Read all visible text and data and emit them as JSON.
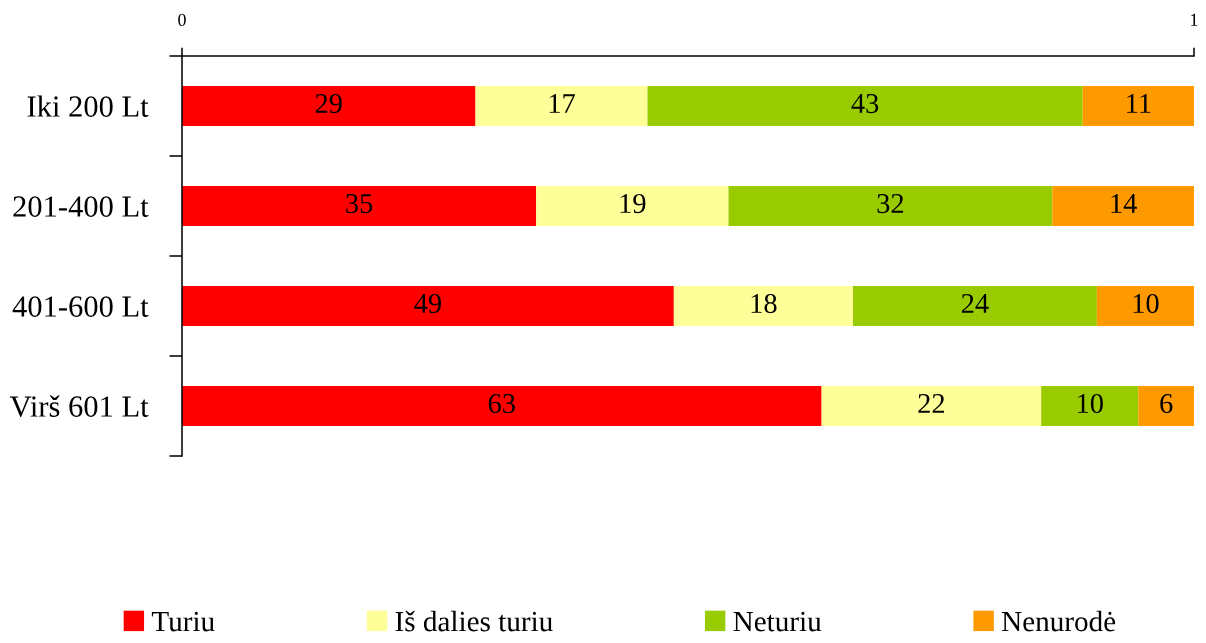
{
  "chart_data": {
    "type": "bar",
    "orientation": "horizontal",
    "stacked": true,
    "categories": [
      "Iki 200 Lt",
      "201-400 Lt",
      "401-600 Lt",
      "Virš 601 Lt"
    ],
    "series": [
      {
        "name": "Turiu",
        "color": "#ff0000",
        "values": [
          29,
          35,
          48.6,
          63.2
        ],
        "value_labels": [
          "29",
          "35",
          "49",
          "63"
        ]
      },
      {
        "name": "Iš dalies turiu",
        "color": "#ffff99",
        "values": [
          17,
          19,
          17.7,
          21.7
        ],
        "value_labels": [
          "17",
          "19",
          "18",
          "22"
        ]
      },
      {
        "name": "Neturiu",
        "color": "#99cc00",
        "values": [
          43,
          32,
          24.1,
          9.6
        ],
        "value_labels": [
          "43",
          "32",
          "24",
          "10"
        ]
      },
      {
        "name": "Nenurodė",
        "color": "#ff9900",
        "values": [
          11,
          14,
          9.6,
          5.5
        ],
        "value_labels": [
          "11",
          "14",
          "10",
          "6"
        ]
      }
    ],
    "xlim": [
      0,
      100
    ],
    "x2lim": [
      0,
      1
    ],
    "x2ticks": [
      0,
      1
    ],
    "legend": "bottom"
  }
}
